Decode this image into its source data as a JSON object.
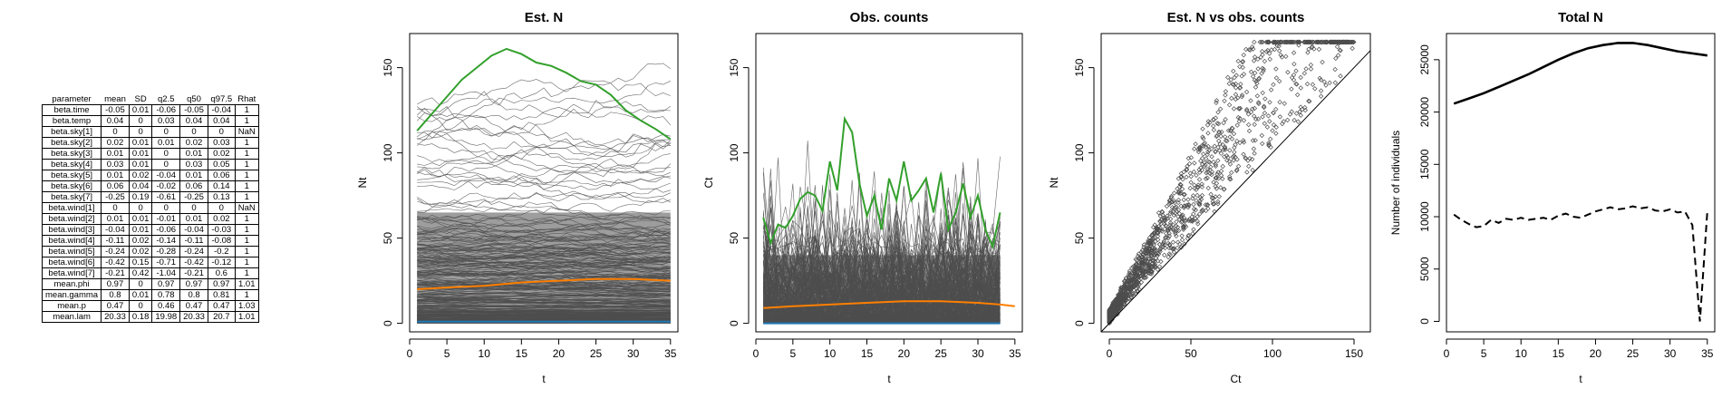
{
  "table": {
    "headers": [
      "parameter",
      "mean",
      "SD",
      "q2.5",
      "q50",
      "q97.5",
      "Rhat"
    ],
    "rows": [
      [
        "beta.time",
        "-0.05",
        "0.01",
        "-0.06",
        "-0.05",
        "-0.04",
        "1"
      ],
      [
        "beta.temp",
        "0.04",
        "0",
        "0.03",
        "0.04",
        "0.04",
        "1"
      ],
      [
        "beta.sky[1]",
        "0",
        "0",
        "0",
        "0",
        "0",
        "NaN"
      ],
      [
        "beta.sky[2]",
        "0.02",
        "0.01",
        "0.01",
        "0.02",
        "0.03",
        "1"
      ],
      [
        "beta.sky[3]",
        "0.01",
        "0.01",
        "0",
        "0.01",
        "0.02",
        "1"
      ],
      [
        "beta.sky[4]",
        "0.03",
        "0.01",
        "0",
        "0.03",
        "0.05",
        "1"
      ],
      [
        "beta.sky[5]",
        "0.01",
        "0.02",
        "-0.04",
        "0.01",
        "0.06",
        "1"
      ],
      [
        "beta.sky[6]",
        "0.06",
        "0.04",
        "-0.02",
        "0.06",
        "0.14",
        "1"
      ],
      [
        "beta.sky[7]",
        "-0.25",
        "0.19",
        "-0.61",
        "-0.25",
        "0.13",
        "1"
      ],
      [
        "beta.wind[1]",
        "0",
        "0",
        "0",
        "0",
        "0",
        "NaN"
      ],
      [
        "beta.wind[2]",
        "0.01",
        "0.01",
        "-0.01",
        "0.01",
        "0.02",
        "1"
      ],
      [
        "beta.wind[3]",
        "-0.04",
        "0.01",
        "-0.06",
        "-0.04",
        "-0.03",
        "1"
      ],
      [
        "beta.wind[4]",
        "-0.11",
        "0.02",
        "-0.14",
        "-0.11",
        "-0.08",
        "1"
      ],
      [
        "beta.wind[5]",
        "-0.24",
        "0.02",
        "-0.28",
        "-0.24",
        "-0.2",
        "1"
      ],
      [
        "beta.wind[6]",
        "-0.42",
        "0.15",
        "-0.71",
        "-0.42",
        "-0.12",
        "1"
      ],
      [
        "beta.wind[7]",
        "-0.21",
        "0.42",
        "-1.04",
        "-0.21",
        "0.6",
        "1"
      ],
      [
        "mean.phi",
        "0.97",
        "0",
        "0.97",
        "0.97",
        "0.97",
        "1.01"
      ],
      [
        "mean.gamma",
        "0.8",
        "0.01",
        "0.78",
        "0.8",
        "0.81",
        "1"
      ],
      [
        "mean.p",
        "0.47",
        "0",
        "0.46",
        "0.47",
        "0.47",
        "1.03"
      ],
      [
        "mean.lam",
        "20.33",
        "0.18",
        "19.98",
        "20.33",
        "20.7",
        "1.01"
      ]
    ]
  },
  "colors": {
    "background_lines": "#4d4d4d",
    "green": "#33a02c",
    "orange": "#ff7f00",
    "blue": "#1f78b4"
  },
  "chart_data": [
    {
      "type": "line",
      "title": "Est. N",
      "xlabel": "t",
      "ylabel": "Nt",
      "xlim": [
        0,
        36
      ],
      "ylim": [
        -5,
        170
      ],
      "xticks": [
        "0",
        "5",
        "10",
        "15",
        "20",
        "25",
        "30",
        "35"
      ],
      "yticks": [
        "0",
        "50",
        "100",
        "150"
      ],
      "series": [
        {
          "role": "highlight",
          "color": "green",
          "x": [
            1,
            3,
            5,
            7,
            9,
            11,
            13,
            15,
            17,
            19,
            21,
            23,
            25,
            27,
            29,
            31,
            33,
            35
          ],
          "y": [
            113,
            123,
            133,
            143,
            150,
            157,
            161,
            158,
            153,
            151,
            147,
            142,
            140,
            134,
            125,
            119,
            114,
            108
          ]
        },
        {
          "role": "mean",
          "color": "orange",
          "x": [
            1,
            5,
            10,
            15,
            20,
            25,
            30,
            35
          ],
          "y": [
            20,
            21,
            22,
            24,
            25,
            26,
            26,
            25
          ]
        },
        {
          "role": "minimum",
          "color": "blue",
          "x": [
            1,
            35
          ],
          "y": [
            1,
            1
          ]
        }
      ],
      "background_lines": "many individual site trajectories, mostly between 0 and 130"
    },
    {
      "type": "line",
      "title": "Obs. counts",
      "xlabel": "t",
      "ylabel": "Ct",
      "xlim": [
        0,
        36
      ],
      "ylim": [
        -5,
        170
      ],
      "xticks": [
        "0",
        "5",
        "10",
        "15",
        "20",
        "25",
        "30",
        "35"
      ],
      "yticks": [
        "0",
        "50",
        "100",
        "150"
      ],
      "series": [
        {
          "role": "highlight",
          "color": "green",
          "x": [
            1,
            2,
            3,
            4,
            5,
            6,
            7,
            8,
            9,
            10,
            11,
            12,
            13,
            14,
            15,
            16,
            17,
            18,
            19,
            20,
            21,
            22,
            23,
            24,
            25,
            26,
            27,
            28,
            29,
            30,
            31,
            32,
            33
          ],
          "y": [
            62,
            47,
            58,
            56,
            63,
            73,
            77,
            75,
            66,
            95,
            78,
            120,
            112,
            82,
            63,
            75,
            55,
            85,
            72,
            95,
            72,
            78,
            85,
            65,
            88,
            55,
            65,
            82,
            62,
            75,
            55,
            45,
            65
          ]
        },
        {
          "role": "mean",
          "color": "orange",
          "x": [
            1,
            5,
            10,
            15,
            20,
            25,
            30,
            33,
            35
          ],
          "y": [
            9,
            10,
            11,
            12,
            13,
            13,
            12,
            11,
            10
          ]
        },
        {
          "role": "minimum",
          "color": "blue",
          "x": [
            1,
            33
          ],
          "y": [
            0,
            0
          ]
        }
      ],
      "background_lines": "many individual site count trajectories, mostly between 0 and 70, peaks up to 152"
    },
    {
      "type": "scatter",
      "title": "Est. N vs obs. counts",
      "xlabel": "Ct",
      "ylabel": "Nt",
      "xlim": [
        -5,
        160
      ],
      "ylim": [
        -5,
        170
      ],
      "xticks": [
        "0",
        "50",
        "100",
        "150"
      ],
      "yticks": [
        "0",
        "50",
        "100",
        "150"
      ],
      "reference_line": "y = x",
      "points_description": "dense cloud above the 1:1 line, Ct 0 to 155, Nt 0 to 160"
    },
    {
      "type": "line",
      "title": "Total N",
      "xlabel": "t",
      "ylabel": "Number of individuals",
      "xlim": [
        0,
        36
      ],
      "ylim": [
        -1000,
        27500
      ],
      "xticks": [
        "0",
        "5",
        "10",
        "15",
        "20",
        "25",
        "30",
        "35"
      ],
      "yticks": [
        "0",
        "5000",
        "10000",
        "15000",
        "20000",
        "25000"
      ],
      "series": [
        {
          "role": "estimated total",
          "style": "solid",
          "x": [
            1,
            3,
            5,
            7,
            9,
            11,
            13,
            15,
            17,
            19,
            21,
            23,
            25,
            27,
            29,
            31,
            33,
            35
          ],
          "y": [
            20800,
            21300,
            21800,
            22400,
            23000,
            23600,
            24300,
            25000,
            25600,
            26100,
            26400,
            26600,
            26600,
            26400,
            26100,
            25800,
            25600,
            25400
          ]
        },
        {
          "role": "observed total",
          "style": "dashed",
          "x": [
            1,
            2,
            3,
            4,
            5,
            6,
            7,
            8,
            9,
            10,
            11,
            12,
            13,
            14,
            15,
            16,
            17,
            18,
            19,
            20,
            21,
            22,
            23,
            24,
            25,
            26,
            27,
            28,
            29,
            30,
            31,
            32,
            33,
            34,
            35
          ],
          "y": [
            10200,
            9700,
            9300,
            9000,
            9100,
            9700,
            9400,
            9800,
            9700,
            9900,
            9700,
            9800,
            9900,
            9700,
            10100,
            10300,
            10000,
            9900,
            10200,
            10500,
            10700,
            10900,
            10700,
            10800,
            11000,
            10800,
            10900,
            10600,
            10500,
            10700,
            10400,
            10500,
            9200,
            0,
            10500
          ]
        }
      ]
    }
  ]
}
